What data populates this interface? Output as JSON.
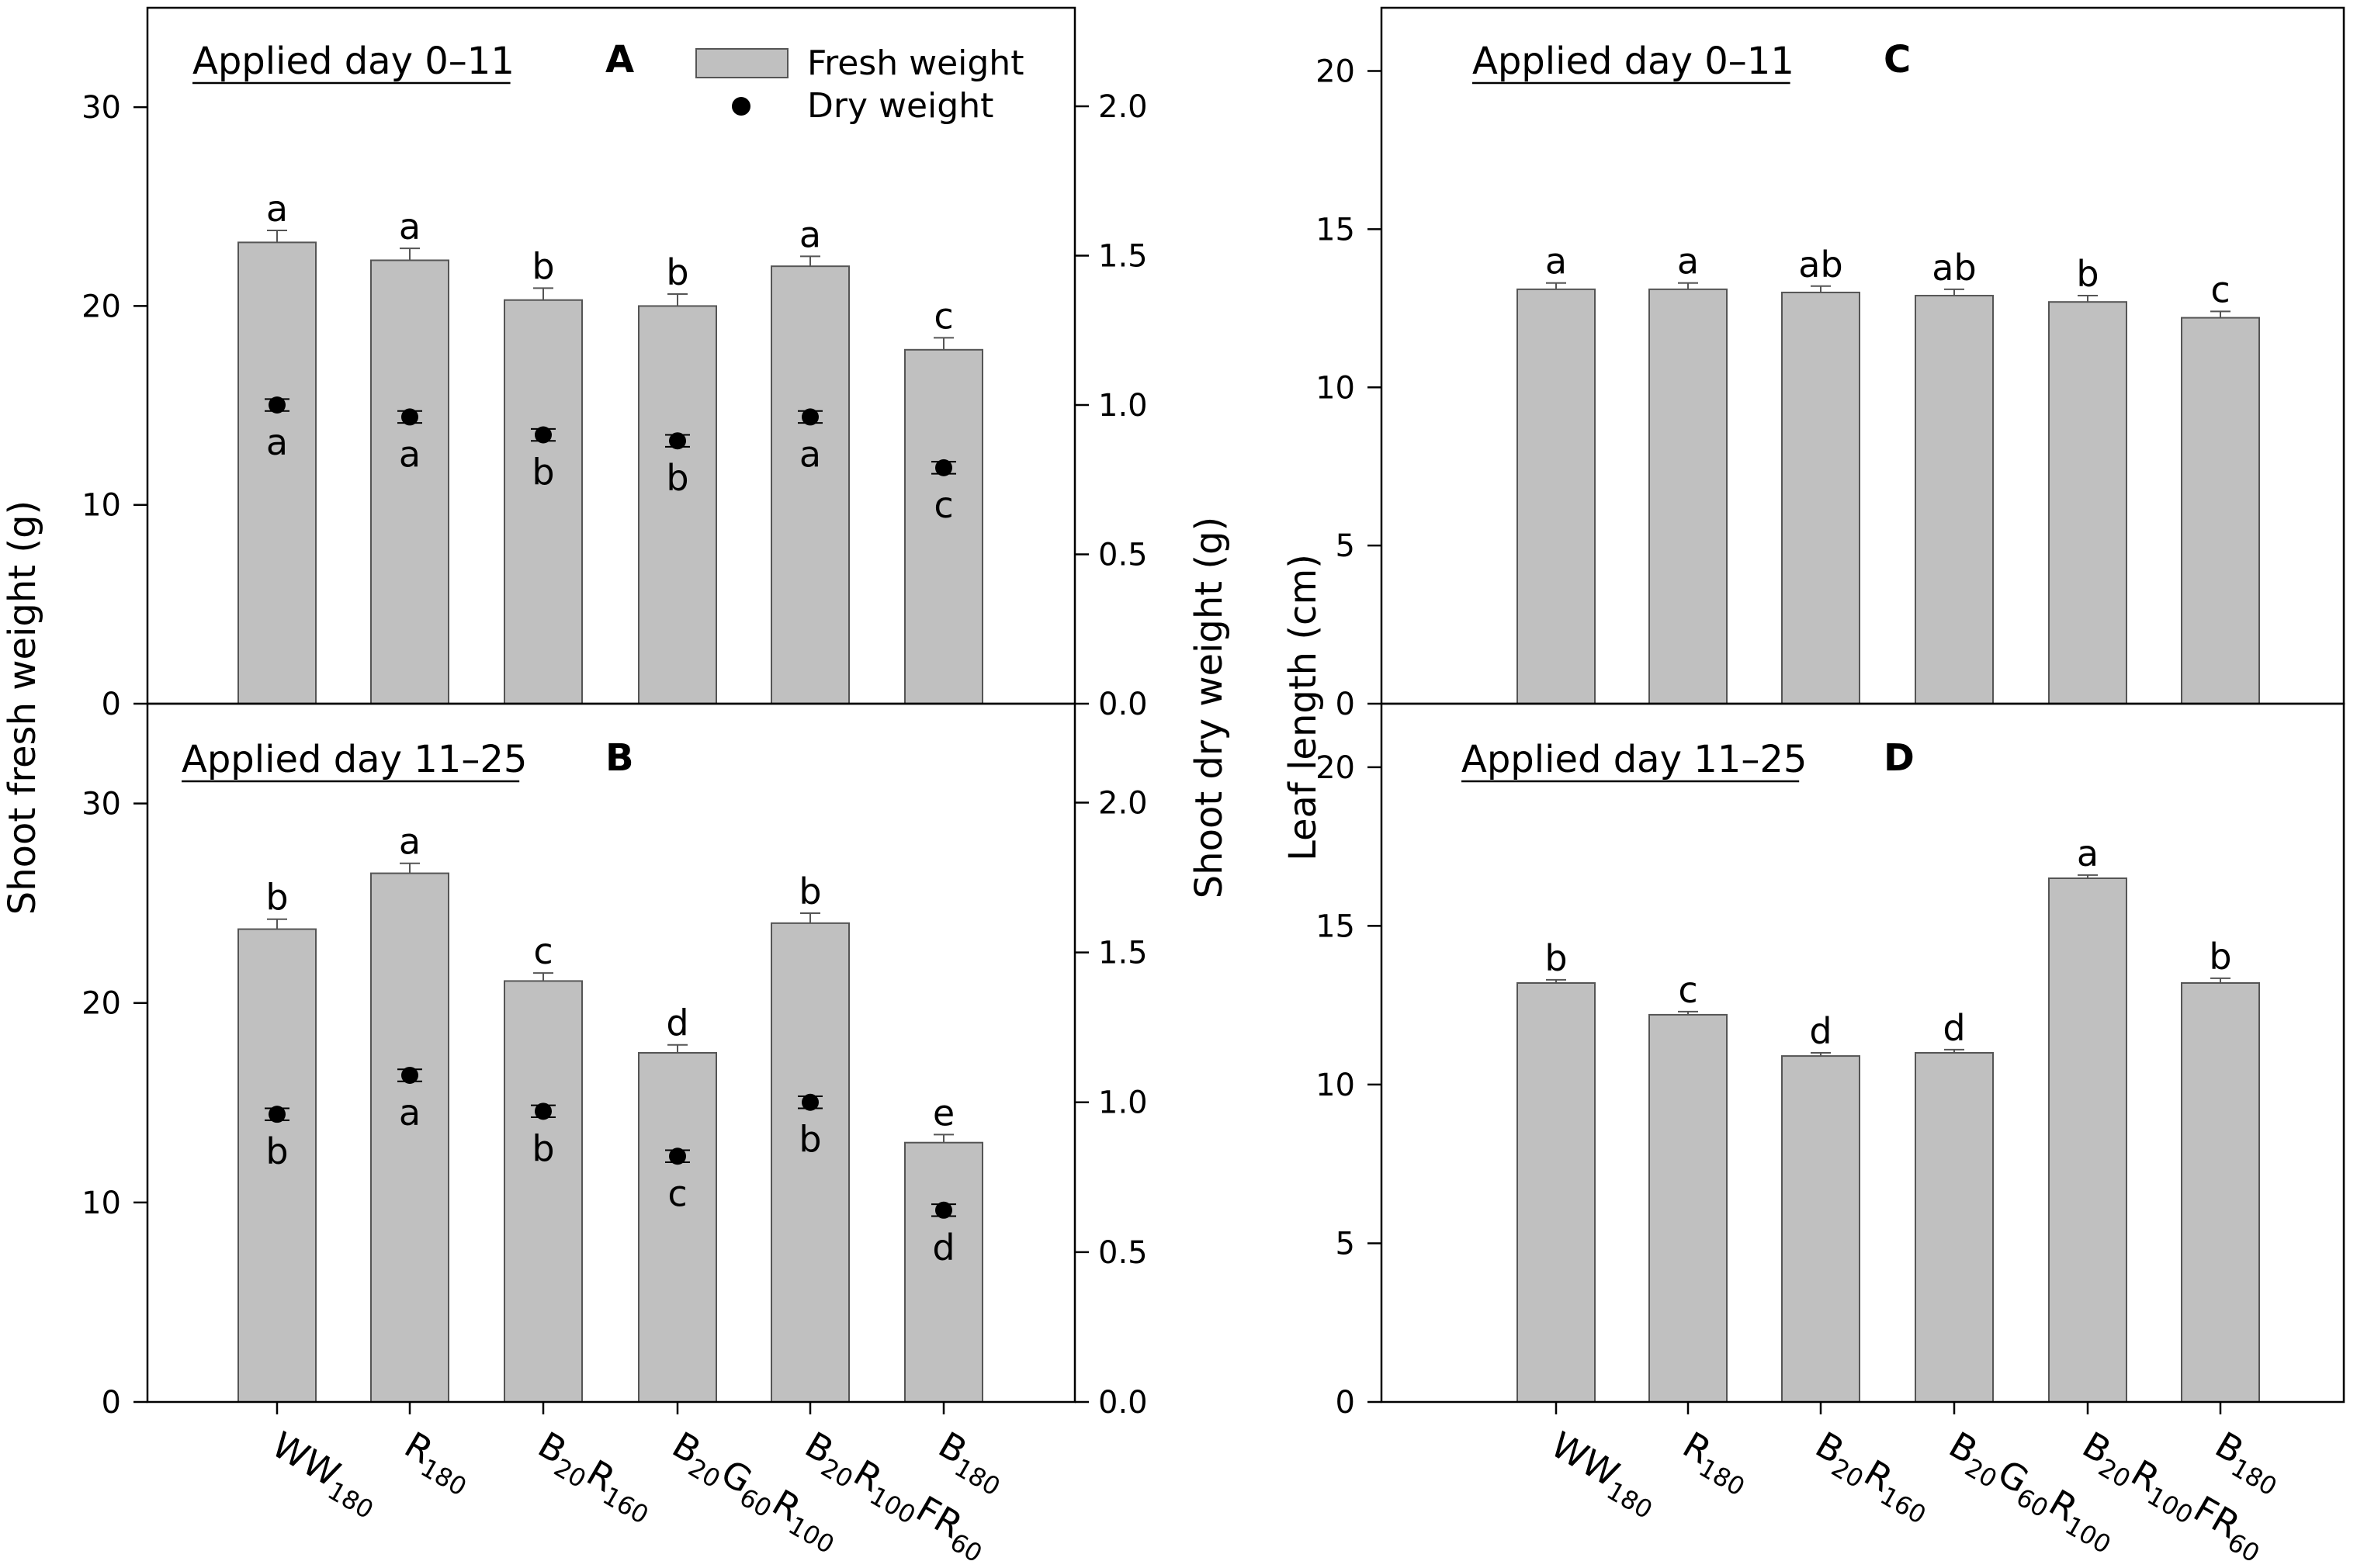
{
  "axis_titles": {
    "fresh": "Shoot fresh weight (g)",
    "dry": "Shoot dry weight (g)",
    "leaf": "Leaf length (cm)"
  },
  "legend": {
    "fresh": "Fresh weight",
    "dry": "Dry weight"
  },
  "categories": [
    {
      "parts": [
        [
          "WW",
          ""
        ],
        [
          "180",
          "sub"
        ]
      ]
    },
    {
      "parts": [
        [
          "R",
          ""
        ],
        [
          "180",
          "sub"
        ]
      ]
    },
    {
      "parts": [
        [
          "B",
          ""
        ],
        [
          "20",
          "sub"
        ],
        [
          "R",
          ""
        ],
        [
          "160",
          "sub"
        ]
      ]
    },
    {
      "parts": [
        [
          "B",
          ""
        ],
        [
          "20",
          "sub"
        ],
        [
          "G",
          ""
        ],
        [
          "60",
          "sub"
        ],
        [
          "R",
          ""
        ],
        [
          "100",
          "sub"
        ]
      ]
    },
    {
      "parts": [
        [
          "B",
          ""
        ],
        [
          "20",
          "sub"
        ],
        [
          "R",
          ""
        ],
        [
          "100",
          "sub"
        ],
        [
          "FR",
          ""
        ],
        [
          "60",
          "sub"
        ]
      ]
    },
    {
      "parts": [
        [
          "B",
          ""
        ],
        [
          "180",
          "sub"
        ]
      ]
    }
  ],
  "colors": {
    "bar": "#c0c0c0",
    "bar_edge": "#555555",
    "dot": "#000000",
    "axis": "#000000"
  },
  "chart_data": [
    {
      "type": "bar",
      "panel": "A",
      "title": "Applied day 0–11",
      "categories": [
        "WW180",
        "R180",
        "B20R160",
        "B20G60R100",
        "B20R100FR60",
        "B180"
      ],
      "ylabel": "Shoot fresh weight (g)",
      "y2label": "Shoot dry weight (g)",
      "ylim": [
        0,
        35
      ],
      "yticks": [
        0,
        10,
        20,
        30
      ],
      "y2lim": [
        0,
        2.33
      ],
      "y2ticks": [
        "0.0",
        "0.5",
        "1.0",
        "1.5",
        "2.0"
      ],
      "series": [
        {
          "name": "Fresh weight",
          "axis": "left",
          "values": [
            23.2,
            22.3,
            20.3,
            20.0,
            22.0,
            17.8
          ],
          "errors": [
            0.6,
            0.6,
            0.6,
            0.6,
            0.5,
            0.6
          ],
          "letters": [
            "a",
            "a",
            "b",
            "b",
            "a",
            "c"
          ]
        },
        {
          "name": "Dry weight",
          "axis": "right",
          "values": [
            1.0,
            0.96,
            0.9,
            0.88,
            0.96,
            0.79
          ],
          "errors": [
            0.02,
            0.02,
            0.02,
            0.02,
            0.02,
            0.02
          ],
          "letters": [
            "a",
            "a",
            "b",
            "b",
            "a",
            "c"
          ]
        }
      ]
    },
    {
      "type": "bar",
      "panel": "B",
      "title": "Applied day 11–25",
      "categories": [
        "WW180",
        "R180",
        "B20R160",
        "B20G60R100",
        "B20R100FR60",
        "B180"
      ],
      "ylabel": "Shoot fresh weight (g)",
      "y2label": "Shoot dry weight (g)",
      "ylim": [
        0,
        35
      ],
      "yticks": [
        0,
        10,
        20,
        30
      ],
      "y2lim": [
        0,
        2.33
      ],
      "y2ticks": [
        "0.0",
        "0.5",
        "1.0",
        "1.5",
        "2.0"
      ],
      "series": [
        {
          "name": "Fresh weight",
          "axis": "left",
          "values": [
            23.7,
            26.5,
            21.1,
            17.5,
            24.0,
            13.0
          ],
          "errors": [
            0.5,
            0.5,
            0.4,
            0.4,
            0.5,
            0.4
          ],
          "letters": [
            "b",
            "a",
            "c",
            "d",
            "b",
            "e"
          ]
        },
        {
          "name": "Dry weight",
          "axis": "right",
          "values": [
            0.96,
            1.09,
            0.97,
            0.82,
            1.0,
            0.64
          ],
          "errors": [
            0.02,
            0.02,
            0.02,
            0.02,
            0.02,
            0.02
          ],
          "letters": [
            "b",
            "a",
            "b",
            "c",
            "b",
            "d"
          ]
        }
      ]
    },
    {
      "type": "bar",
      "panel": "C",
      "title": "Applied day 0–11",
      "categories": [
        "WW180",
        "R180",
        "B20R160",
        "B20G60R100",
        "B20R100FR60",
        "B180"
      ],
      "ylabel": "Leaf length (cm)",
      "ylim": [
        0,
        22
      ],
      "yticks": [
        0,
        5,
        10,
        15,
        20
      ],
      "series": [
        {
          "name": "Leaf length",
          "axis": "left",
          "values": [
            13.1,
            13.1,
            13.0,
            12.9,
            12.7,
            12.2
          ],
          "errors": [
            0.2,
            0.2,
            0.2,
            0.2,
            0.2,
            0.2
          ],
          "letters": [
            "a",
            "a",
            "ab",
            "ab",
            "b",
            "c"
          ]
        }
      ]
    },
    {
      "type": "bar",
      "panel": "D",
      "title": "Applied day 11–25",
      "categories": [
        "WW180",
        "R180",
        "B20R160",
        "B20G60R100",
        "B20R100FR60",
        "B180"
      ],
      "ylabel": "Leaf length (cm)",
      "ylim": [
        0,
        22
      ],
      "yticks": [
        0,
        5,
        10,
        15,
        20
      ],
      "series": [
        {
          "name": "Leaf length",
          "axis": "left",
          "values": [
            13.2,
            12.2,
            10.9,
            11.0,
            16.5,
            13.2
          ],
          "errors": [
            0.1,
            0.1,
            0.1,
            0.1,
            0.1,
            0.15
          ],
          "letters": [
            "b",
            "c",
            "d",
            "d",
            "a",
            "b"
          ]
        }
      ]
    }
  ]
}
